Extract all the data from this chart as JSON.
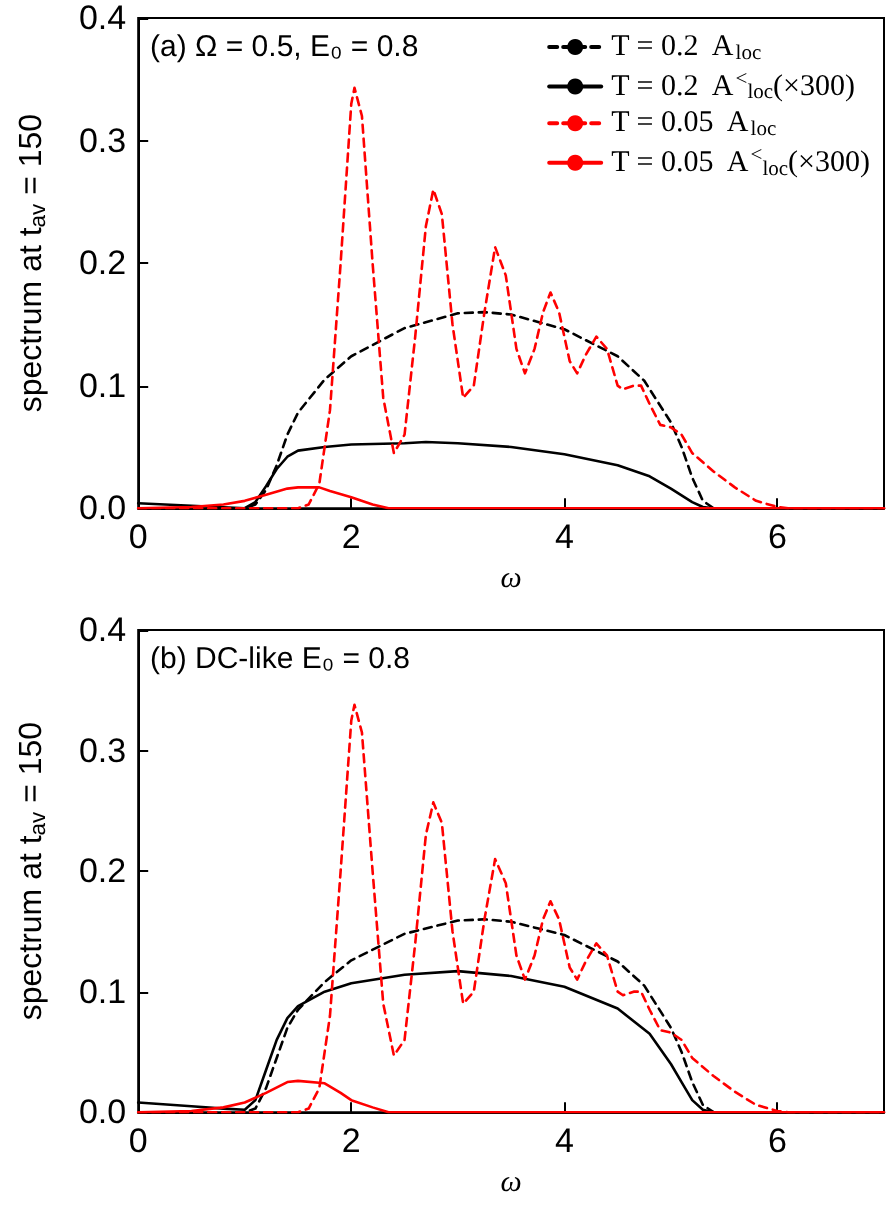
{
  "chart_data": [
    {
      "type": "line",
      "title": "(a) Ω = 0.5, E₀ = 0.8",
      "xlabel": "ω",
      "ylabel": "spectrum at t$_{av}$ = 150",
      "xlim": [
        0,
        7
      ],
      "ylim": [
        0,
        0.4
      ],
      "xticks": [
        0,
        2,
        4,
        6
      ],
      "yticks": [
        {
          "value": 0,
          "label": "0.0"
        },
        {
          "value": 0.1,
          "label": "0.1"
        },
        {
          "value": 0.2,
          "label": "0.2"
        },
        {
          "value": 0.3,
          "label": "0.3"
        },
        {
          "value": 0.4,
          "label": "0.4"
        }
      ],
      "grid": false,
      "legend": "top right",
      "marker": "none",
      "series": [
        {
          "name": "T = 0.2  A$_{loc}$",
          "color": "#000000",
          "line_style": "dashed",
          "x": [
            0,
            1.0,
            1.1,
            1.2,
            1.3,
            1.4,
            1.5,
            1.75,
            2.0,
            2.5,
            3.0,
            3.25,
            3.5,
            4.0,
            4.5,
            4.75,
            5.0,
            5.1,
            5.2,
            5.3,
            5.4,
            7
          ],
          "values": [
            0,
            0,
            0.003,
            0.015,
            0.035,
            0.06,
            0.078,
            0.105,
            0.124,
            0.147,
            0.159,
            0.16,
            0.158,
            0.146,
            0.124,
            0.104,
            0.07,
            0.05,
            0.025,
            0.006,
            0,
            0
          ]
        },
        {
          "name": "T = 0.2  A$^{<}$$_{loc}$(×300)",
          "color": "#000000",
          "line_style": "solid",
          "x": [
            0,
            0.5,
            1.0,
            1.1,
            1.2,
            1.3,
            1.4,
            1.5,
            1.75,
            2.0,
            2.5,
            2.7,
            3.0,
            3.5,
            4.0,
            4.5,
            4.8,
            5.0,
            5.2,
            5.3,
            5.4,
            7
          ],
          "values": [
            0.004,
            0.002,
            0,
            0.005,
            0.018,
            0.032,
            0.042,
            0.047,
            0.05,
            0.052,
            0.053,
            0.054,
            0.053,
            0.05,
            0.044,
            0.035,
            0.026,
            0.016,
            0.005,
            0.001,
            0,
            0
          ]
        },
        {
          "name": "T = 0.05  A$_{loc}$",
          "color": "#ff0000",
          "line_style": "dashed",
          "x": [
            0,
            1.5,
            1.6,
            1.7,
            1.8,
            1.9,
            2.0,
            2.03,
            2.1,
            2.2,
            2.3,
            2.4,
            2.5,
            2.6,
            2.7,
            2.77,
            2.85,
            2.95,
            3.05,
            3.15,
            3.25,
            3.35,
            3.45,
            3.55,
            3.63,
            3.72,
            3.8,
            3.87,
            3.95,
            4.05,
            4.12,
            4.2,
            4.3,
            4.4,
            4.5,
            4.55,
            4.65,
            4.72,
            4.8,
            4.9,
            5.0,
            5.1,
            5.2,
            5.4,
            5.6,
            5.8,
            6.0,
            6.1,
            7
          ],
          "values": [
            0,
            0,
            0.003,
            0.02,
            0.08,
            0.2,
            0.33,
            0.343,
            0.32,
            0.2,
            0.09,
            0.045,
            0.06,
            0.14,
            0.23,
            0.26,
            0.24,
            0.15,
            0.09,
            0.1,
            0.16,
            0.213,
            0.19,
            0.13,
            0.11,
            0.13,
            0.16,
            0.176,
            0.16,
            0.12,
            0.11,
            0.125,
            0.14,
            0.13,
            0.1,
            0.097,
            0.1,
            0.1,
            0.085,
            0.068,
            0.066,
            0.06,
            0.045,
            0.03,
            0.017,
            0.006,
            0.001,
            0,
            0
          ]
        },
        {
          "name": "T = 0.05  A$^{<}$$_{loc}$(×300)",
          "color": "#ff0000",
          "line_style": "solid",
          "x": [
            0,
            0.5,
            0.8,
            1.0,
            1.2,
            1.4,
            1.5,
            1.7,
            1.8,
            2.0,
            2.2,
            2.35,
            7
          ],
          "values": [
            0,
            0.001,
            0.003,
            0.006,
            0.011,
            0.016,
            0.017,
            0.017,
            0.014,
            0.009,
            0.003,
            0,
            0
          ]
        }
      ]
    },
    {
      "type": "line",
      "title": "(b) DC-like E₀ = 0.8",
      "xlabel": "ω",
      "ylabel": "spectrum at t$_{av}$ = 150",
      "xlim": [
        0,
        7
      ],
      "ylim": [
        0,
        0.4
      ],
      "xticks": [
        0,
        2,
        4,
        6
      ],
      "yticks": [
        {
          "value": 0,
          "label": "0.0"
        },
        {
          "value": 0.1,
          "label": "0.1"
        },
        {
          "value": 0.2,
          "label": "0.2"
        },
        {
          "value": 0.3,
          "label": "0.3"
        },
        {
          "value": 0.4,
          "label": "0.4"
        }
      ],
      "grid": false,
      "marker": "none",
      "series": [
        {
          "color": "#000000",
          "line_style": "dashed",
          "x": [
            0,
            1.0,
            1.1,
            1.2,
            1.3,
            1.4,
            1.5,
            1.75,
            2.0,
            2.5,
            3.0,
            3.25,
            3.5,
            4.0,
            4.5,
            4.75,
            5.0,
            5.1,
            5.2,
            5.3,
            5.4,
            7
          ],
          "values": [
            0,
            0,
            0.003,
            0.02,
            0.045,
            0.07,
            0.085,
            0.108,
            0.126,
            0.148,
            0.159,
            0.16,
            0.158,
            0.147,
            0.125,
            0.105,
            0.07,
            0.05,
            0.025,
            0.006,
            0,
            0
          ]
        },
        {
          "color": "#000000",
          "line_style": "solid",
          "x": [
            0,
            0.5,
            0.8,
            1.0,
            1.1,
            1.2,
            1.3,
            1.4,
            1.5,
            1.75,
            2.0,
            2.5,
            3.0,
            3.5,
            4.0,
            4.5,
            4.8,
            5.0,
            5.1,
            5.2,
            5.3,
            5.4,
            7
          ],
          "values": [
            0.008,
            0.005,
            0.003,
            0.002,
            0.01,
            0.035,
            0.06,
            0.078,
            0.088,
            0.1,
            0.107,
            0.114,
            0.117,
            0.113,
            0.104,
            0.086,
            0.065,
            0.04,
            0.025,
            0.01,
            0.002,
            0,
            0
          ]
        },
        {
          "color": "#ff0000",
          "line_style": "dashed",
          "x": [
            0,
            1.5,
            1.6,
            1.7,
            1.8,
            1.9,
            2.0,
            2.03,
            2.1,
            2.2,
            2.3,
            2.4,
            2.5,
            2.6,
            2.7,
            2.77,
            2.85,
            2.95,
            3.05,
            3.15,
            3.25,
            3.35,
            3.45,
            3.55,
            3.63,
            3.72,
            3.8,
            3.87,
            3.95,
            4.05,
            4.12,
            4.2,
            4.3,
            4.4,
            4.5,
            4.55,
            4.65,
            4.72,
            4.8,
            4.9,
            5.0,
            5.1,
            5.2,
            5.4,
            5.6,
            5.8,
            6.0,
            6.1,
            7
          ],
          "values": [
            0,
            0,
            0.003,
            0.02,
            0.08,
            0.2,
            0.325,
            0.338,
            0.315,
            0.2,
            0.09,
            0.047,
            0.06,
            0.14,
            0.23,
            0.257,
            0.24,
            0.15,
            0.09,
            0.1,
            0.16,
            0.21,
            0.19,
            0.13,
            0.11,
            0.13,
            0.16,
            0.175,
            0.16,
            0.12,
            0.11,
            0.125,
            0.14,
            0.13,
            0.1,
            0.097,
            0.1,
            0.1,
            0.085,
            0.068,
            0.066,
            0.06,
            0.045,
            0.03,
            0.017,
            0.006,
            0.001,
            0,
            0
          ]
        },
        {
          "color": "#ff0000",
          "line_style": "solid",
          "x": [
            0,
            0.5,
            0.8,
            1.0,
            1.2,
            1.4,
            1.5,
            1.75,
            1.9,
            2.0,
            2.2,
            2.35,
            7
          ],
          "values": [
            0,
            0.001,
            0.004,
            0.008,
            0.016,
            0.025,
            0.026,
            0.024,
            0.016,
            0.01,
            0.004,
            0,
            0
          ]
        }
      ]
    }
  ]
}
